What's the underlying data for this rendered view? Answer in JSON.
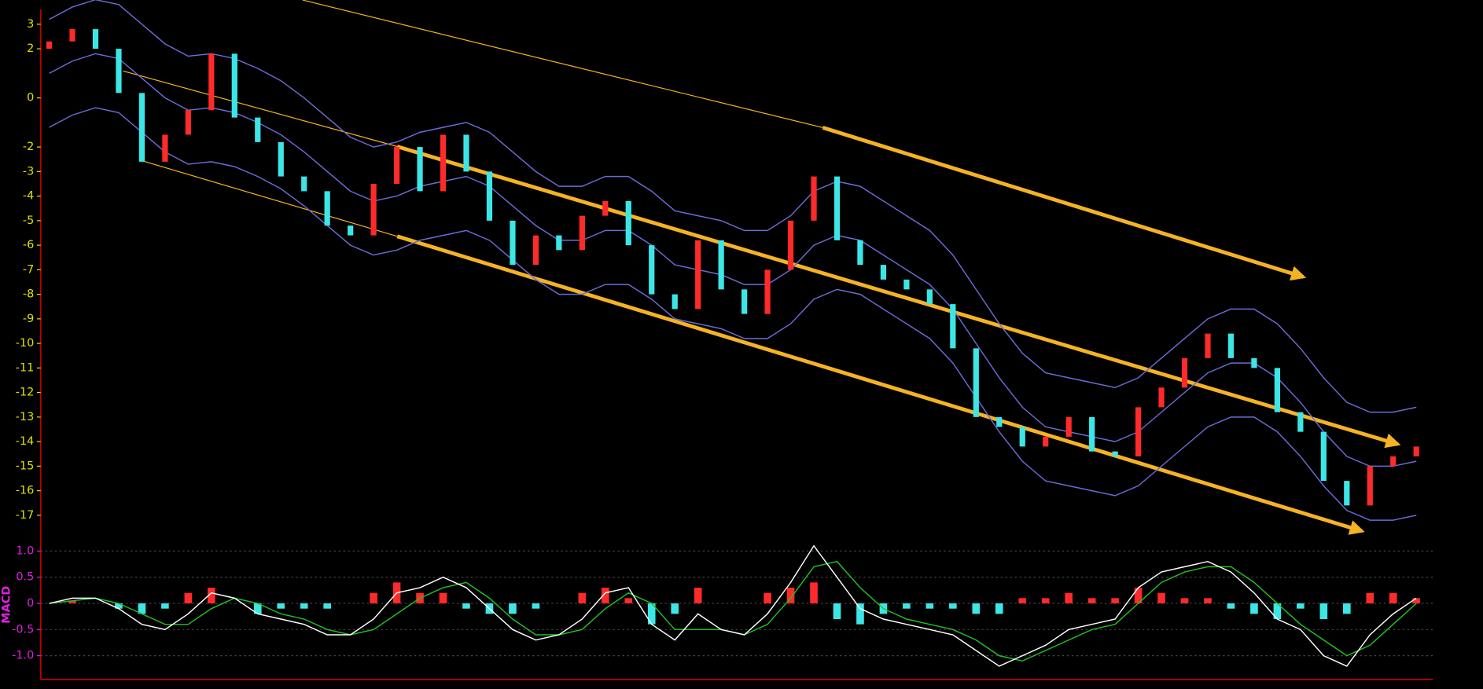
{
  "chart_data": [
    {
      "type": "candlestick",
      "ylim": [
        -17.8,
        3.6
      ],
      "yticks": [
        3,
        2,
        0,
        -2,
        -3,
        -4,
        -5,
        -6,
        -7,
        -8,
        -9,
        -10,
        -11,
        -12,
        -13,
        -14,
        -15,
        -16,
        -17
      ],
      "tick_color": "#e0e000",
      "up_color": "#ff2a2a",
      "down_color": "#3ce6e6",
      "band_color": "#6b6bd6",
      "open": [
        2.0,
        2.3,
        2.8,
        2.0,
        0.2,
        -2.6,
        -1.5,
        -0.5,
        1.8,
        -0.8,
        -1.8,
        -3.2,
        -3.8,
        -5.2,
        -5.6,
        -3.5,
        -2.0,
        -3.8,
        -1.5,
        -3.0,
        -5.0,
        -6.8,
        -5.6,
        -6.2,
        -4.8,
        -4.2,
        -6.0,
        -8.0,
        -8.6,
        -5.8,
        -7.8,
        -8.8,
        -7.0,
        -5.0,
        -3.2,
        -5.8,
        -6.8,
        -7.4,
        -7.8,
        -8.4,
        -10.2,
        -13.0,
        -13.4,
        -14.2,
        -13.8,
        -13.0,
        -14.4,
        -14.6,
        -12.6,
        -11.8,
        -10.6,
        -9.6,
        -10.6,
        -11.0,
        -12.8,
        -13.6,
        -15.6,
        -16.6,
        -15.0,
        -14.6
      ],
      "close": [
        2.3,
        2.8,
        2.0,
        0.2,
        -2.6,
        -1.5,
        -0.5,
        1.8,
        -0.8,
        -1.8,
        -3.2,
        -3.8,
        -5.2,
        -5.6,
        -3.5,
        -2.0,
        -3.8,
        -1.5,
        -3.0,
        -5.0,
        -6.8,
        -5.6,
        -6.2,
        -4.8,
        -4.2,
        -6.0,
        -8.0,
        -8.6,
        -5.8,
        -7.8,
        -8.8,
        -7.0,
        -5.0,
        -3.2,
        -5.8,
        -6.8,
        -7.4,
        -7.8,
        -8.4,
        -10.2,
        -13.0,
        -13.4,
        -14.2,
        -13.8,
        -13.0,
        -14.4,
        -14.6,
        -12.6,
        -11.8,
        -10.6,
        -9.6,
        -10.6,
        -11.0,
        -12.8,
        -13.6,
        -15.6,
        -16.6,
        -15.0,
        -14.6,
        -14.2
      ],
      "upper": [
        3.2,
        3.7,
        4.0,
        3.8,
        3.0,
        2.2,
        1.7,
        1.8,
        1.6,
        1.2,
        0.7,
        0.0,
        -0.8,
        -1.6,
        -2.0,
        -1.8,
        -1.4,
        -1.2,
        -1.0,
        -1.4,
        -2.2,
        -3.0,
        -3.6,
        -3.6,
        -3.2,
        -3.2,
        -3.8,
        -4.6,
        -4.8,
        -5.0,
        -5.4,
        -5.4,
        -4.8,
        -3.8,
        -3.4,
        -3.6,
        -4.2,
        -4.8,
        -5.4,
        -6.4,
        -7.8,
        -9.2,
        -10.4,
        -11.2,
        -11.4,
        -11.6,
        -11.8,
        -11.4,
        -10.6,
        -9.8,
        -9.0,
        -8.6,
        -8.6,
        -9.2,
        -10.2,
        -11.4,
        -12.4,
        -12.8,
        -12.8,
        -12.6
      ],
      "mid": [
        1.0,
        1.5,
        1.8,
        1.6,
        0.8,
        0.0,
        -0.5,
        -0.4,
        -0.6,
        -1.0,
        -1.5,
        -2.2,
        -3.0,
        -3.8,
        -4.2,
        -4.0,
        -3.6,
        -3.4,
        -3.2,
        -3.6,
        -4.4,
        -5.2,
        -5.8,
        -5.8,
        -5.4,
        -5.4,
        -6.0,
        -6.8,
        -7.0,
        -7.2,
        -7.6,
        -7.6,
        -7.0,
        -6.0,
        -5.6,
        -5.8,
        -6.4,
        -7.0,
        -7.6,
        -8.6,
        -10.0,
        -11.4,
        -12.6,
        -13.4,
        -13.6,
        -13.8,
        -14.0,
        -13.6,
        -12.8,
        -12.0,
        -11.2,
        -10.8,
        -10.8,
        -11.4,
        -12.4,
        -13.6,
        -14.6,
        -15.0,
        -15.0,
        -14.8
      ],
      "lower": [
        -1.2,
        -0.7,
        -0.4,
        -0.6,
        -1.4,
        -2.2,
        -2.7,
        -2.6,
        -2.8,
        -3.2,
        -3.7,
        -4.4,
        -5.2,
        -6.0,
        -6.4,
        -6.2,
        -5.8,
        -5.6,
        -5.4,
        -5.8,
        -6.6,
        -7.4,
        -8.0,
        -8.0,
        -7.6,
        -7.6,
        -8.2,
        -9.0,
        -9.2,
        -9.4,
        -9.8,
        -9.8,
        -9.2,
        -8.2,
        -7.8,
        -8.0,
        -8.6,
        -9.2,
        -9.8,
        -10.8,
        -12.2,
        -13.6,
        -14.8,
        -15.6,
        -15.8,
        -16.0,
        -16.2,
        -15.8,
        -15.0,
        -14.2,
        -13.4,
        -13.0,
        -13.0,
        -13.6,
        -14.6,
        -15.8,
        -16.8,
        -17.2,
        -17.2,
        -17.0
      ]
    },
    {
      "type": "macd",
      "label": "MACD",
      "ylim": [
        -1.4,
        1.2
      ],
      "yticks": [
        {
          "value": 1,
          "label": "1.0"
        },
        0.5,
        0,
        -0.5,
        {
          "value": -1,
          "label": "-1.0"
        }
      ],
      "grid": true,
      "tick_color": "#e020e0",
      "dif_color": "#ffffff",
      "dea_color": "#22c022",
      "up_color": "#ff2a2a",
      "down_color": "#3ce6e6",
      "dif": [
        0,
        0.1,
        0.1,
        -0.1,
        -0.4,
        -0.5,
        -0.2,
        0.2,
        0.1,
        -0.2,
        -0.3,
        -0.4,
        -0.6,
        -0.6,
        -0.3,
        0.2,
        0.3,
        0.5,
        0.3,
        -0.1,
        -0.5,
        -0.7,
        -0.6,
        -0.3,
        0.2,
        0.3,
        -0.4,
        -0.7,
        -0.2,
        -0.5,
        -0.6,
        -0.2,
        0.4,
        1.1,
        0.5,
        -0.1,
        -0.3,
        -0.4,
        -0.5,
        -0.6,
        -0.9,
        -1.2,
        -1.0,
        -0.8,
        -0.5,
        -0.4,
        -0.3,
        0.3,
        0.6,
        0.7,
        0.8,
        0.6,
        0.2,
        -0.3,
        -0.5,
        -1.0,
        -1.2,
        -0.6,
        -0.2,
        0.1
      ],
      "dea": [
        0,
        0.05,
        0.1,
        0,
        -0.2,
        -0.4,
        -0.4,
        -0.1,
        0.1,
        0,
        -0.2,
        -0.3,
        -0.5,
        -0.6,
        -0.5,
        -0.2,
        0.1,
        0.3,
        0.4,
        0.1,
        -0.3,
        -0.6,
        -0.6,
        -0.5,
        -0.1,
        0.2,
        0,
        -0.5,
        -0.5,
        -0.5,
        -0.6,
        -0.4,
        0.1,
        0.7,
        0.8,
        0.3,
        -0.1,
        -0.3,
        -0.4,
        -0.5,
        -0.7,
        -1.0,
        -1.1,
        -0.9,
        -0.7,
        -0.5,
        -0.4,
        0,
        0.4,
        0.6,
        0.7,
        0.7,
        0.4,
        0,
        -0.4,
        -0.7,
        -1.0,
        -0.8,
        -0.4,
        0
      ],
      "hist": [
        0,
        0.05,
        0,
        -0.1,
        -0.2,
        -0.1,
        0.2,
        0.3,
        0,
        -0.2,
        -0.1,
        -0.1,
        -0.1,
        0,
        0.2,
        0.4,
        0.2,
        0.2,
        -0.1,
        -0.2,
        -0.2,
        -0.1,
        0,
        0.2,
        0.3,
        0.1,
        -0.4,
        -0.2,
        0.3,
        0,
        0,
        0.2,
        0.3,
        0.4,
        -0.3,
        -0.4,
        -0.2,
        -0.1,
        -0.1,
        -0.1,
        -0.2,
        -0.2,
        0.1,
        0.1,
        0.2,
        0.1,
        0.1,
        0.3,
        0.2,
        0.1,
        0.1,
        -0.1,
        -0.2,
        -0.3,
        -0.1,
        -0.3,
        -0.2,
        0.2,
        0.2,
        0.1
      ]
    }
  ]
}
